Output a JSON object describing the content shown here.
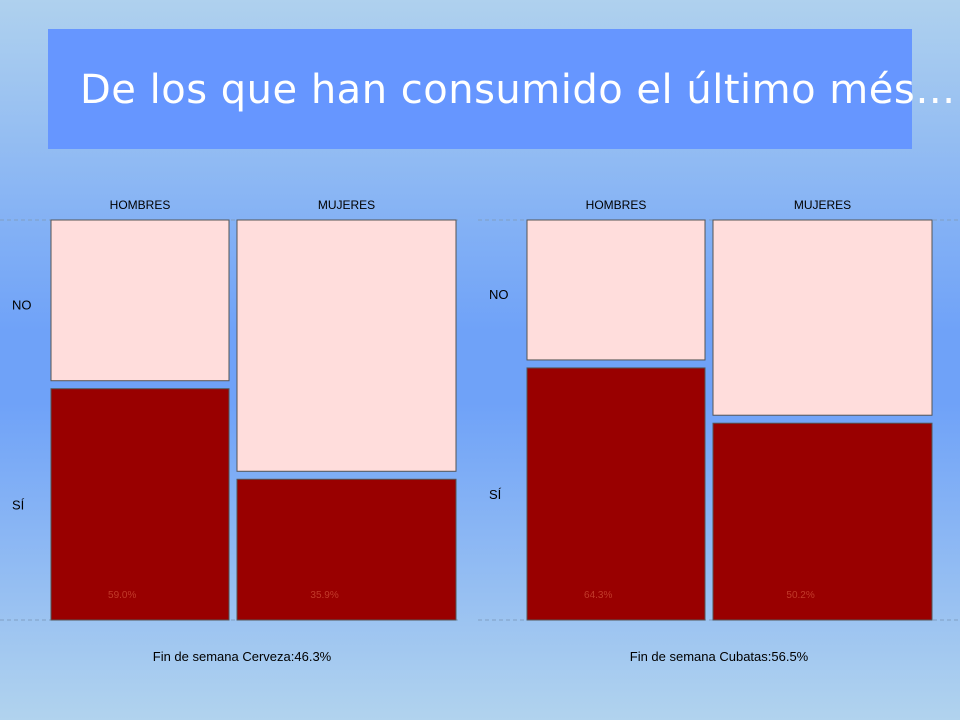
{
  "slide": {
    "title": "De los que han consumido el último més…"
  },
  "colors": {
    "si_fill": "#990000",
    "no_fill": "#ffdddc",
    "title_box": "#6696ff",
    "title_text": "#ffffff"
  },
  "chart_data": [
    {
      "type": "mosaic",
      "title": "Fin de semana Cerveza:46.3%",
      "columns": [
        "HOMBRES",
        "MUJERES"
      ],
      "rows": [
        "NO",
        "SÍ"
      ],
      "si_percent": [
        59.0,
        35.9
      ],
      "si_labels": [
        "59.0%",
        "35.9%"
      ]
    },
    {
      "type": "mosaic",
      "title": "Fin de semana Cubatas:56.5%",
      "columns": [
        "HOMBRES",
        "MUJERES"
      ],
      "rows": [
        "NO",
        "SÍ"
      ],
      "si_percent": [
        64.3,
        50.2
      ],
      "si_labels": [
        "64.3%",
        "50.2%"
      ]
    }
  ]
}
